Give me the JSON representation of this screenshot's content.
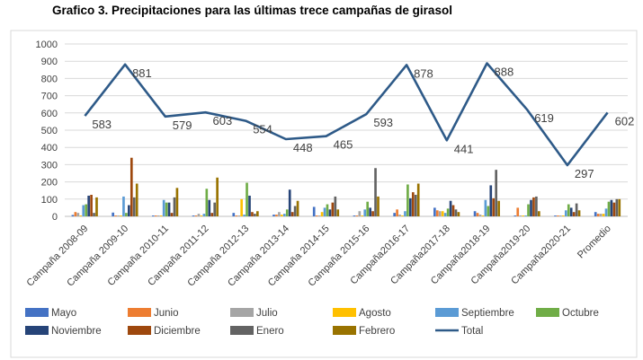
{
  "title": "Grafico 3. Precipitaciones para las últimas trece campañas de girasol",
  "chart_data": {
    "type": "bar+line",
    "title": "Grafico 3. Precipitaciones para las últimas trece campañas de girasol",
    "categories": [
      "Campaña 2008-09",
      "Campaña 2009-10",
      "Campaña 2010-11",
      "Campaña 2011-12",
      "Campaña 2012-13",
      "Campaña 2013-14",
      "Campaña 2014-15",
      "Campaña 2015-16",
      "Campaña2016-17",
      "Campaña2017-18",
      "Campaña2018-19",
      "Campaña2019-20",
      "Campaña2020-21",
      "Promedio"
    ],
    "ylim": [
      0,
      1000
    ],
    "yticks": [
      0,
      100,
      200,
      300,
      400,
      500,
      600,
      700,
      800,
      900,
      1000
    ],
    "grid": true,
    "legend_position": "bottom",
    "series": [
      {
        "name": "Mayo",
        "color": "#4472C4",
        "values": [
          8,
          22,
          5,
          5,
          20,
          10,
          55,
          5,
          20,
          50,
          30,
          5,
          5,
          25
        ]
      },
      {
        "name": "Junio",
        "color": "#ED7D31",
        "values": [
          25,
          5,
          5,
          5,
          5,
          10,
          5,
          5,
          40,
          35,
          20,
          50,
          5,
          15
        ]
      },
      {
        "name": "Julio",
        "color": "#A5A5A5",
        "values": [
          20,
          5,
          5,
          15,
          5,
          25,
          5,
          30,
          10,
          30,
          10,
          5,
          5,
          15
        ]
      },
      {
        "name": "Agosto",
        "color": "#FFC000",
        "values": [
          5,
          5,
          5,
          5,
          100,
          10,
          25,
          5,
          5,
          30,
          5,
          5,
          5,
          15
        ]
      },
      {
        "name": "Septiembre",
        "color": "#5B9BD5",
        "values": [
          65,
          115,
          95,
          15,
          10,
          15,
          50,
          40,
          30,
          20,
          95,
          5,
          35,
          45
        ]
      },
      {
        "name": "Octubre",
        "color": "#70AD47",
        "values": [
          70,
          20,
          80,
          160,
          195,
          40,
          70,
          85,
          185,
          45,
          60,
          70,
          70,
          85
        ]
      },
      {
        "name": "Noviembre",
        "color": "#264478",
        "values": [
          120,
          65,
          80,
          95,
          120,
          155,
          40,
          50,
          105,
          90,
          180,
          95,
          50,
          95
        ]
      },
      {
        "name": "Diciembre",
        "color": "#9E480E",
        "values": [
          125,
          340,
          20,
          20,
          25,
          25,
          80,
          30,
          140,
          65,
          105,
          110,
          25,
          80
        ]
      },
      {
        "name": "Enero",
        "color": "#636363",
        "values": [
          20,
          110,
          110,
          80,
          15,
          60,
          115,
          280,
          125,
          40,
          270,
          115,
          75,
          100
        ]
      },
      {
        "name": "Febrero",
        "color": "#997300",
        "values": [
          110,
          190,
          165,
          225,
          30,
          90,
          40,
          115,
          190,
          25,
          90,
          30,
          35,
          100
        ]
      }
    ],
    "total": {
      "name": "Total",
      "color": "#2E5A88",
      "values": [
        583,
        881,
        579,
        603,
        554,
        448,
        465,
        593,
        878,
        441,
        888,
        619,
        297,
        602
      ]
    }
  },
  "colors": {
    "grid": "#D9D9D9",
    "axis_text": "#404040",
    "title": "#000000"
  }
}
